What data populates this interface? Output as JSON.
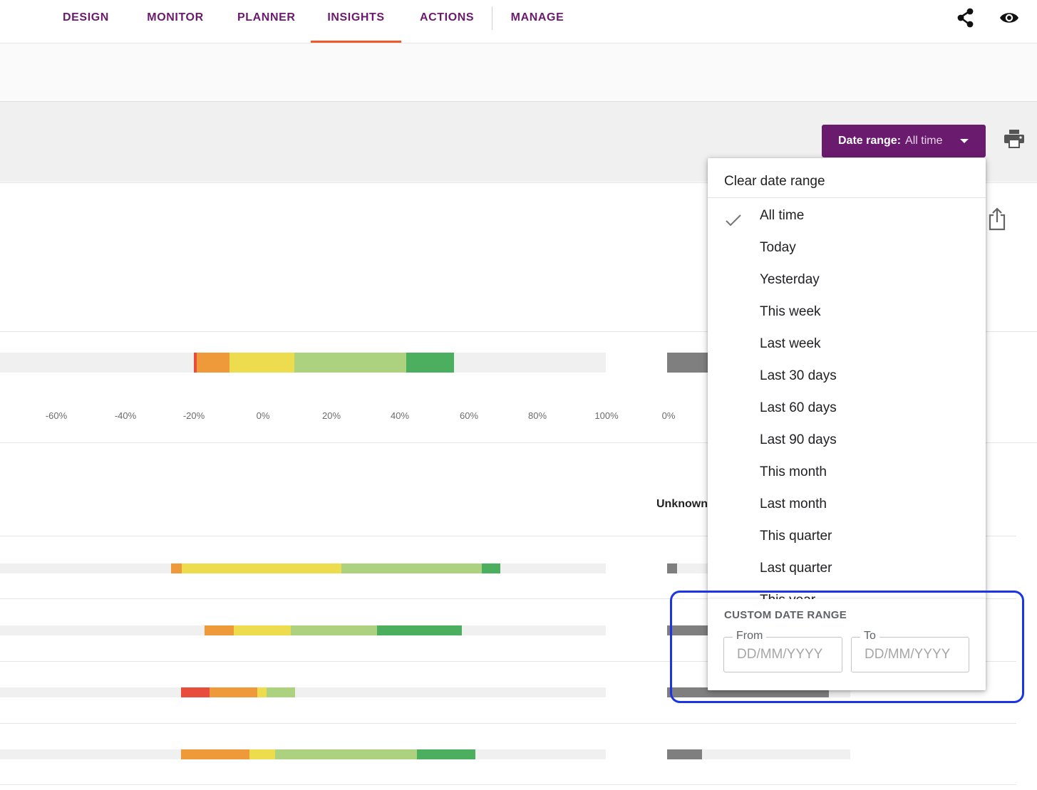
{
  "nav": {
    "tabs": [
      {
        "label": "DESIGN",
        "active": false
      },
      {
        "label": "MONITOR",
        "active": false
      },
      {
        "label": "PLANNER",
        "active": false
      },
      {
        "label": "INSIGHTS",
        "active": true
      },
      {
        "label": "ACTIONS",
        "active": false
      },
      {
        "label": "MANAGE",
        "active": false
      }
    ],
    "icons": [
      "share-icon",
      "eye-icon"
    ]
  },
  "toolbar": {
    "date_range_label": "Date range:",
    "date_range_value": "All time",
    "icons": [
      "print-icon",
      "export-icon"
    ]
  },
  "chart": {
    "axis_ticks": [
      "-60%",
      "-40%",
      "-20%",
      "0%",
      "20%",
      "40%",
      "60%",
      "80%",
      "100%"
    ],
    "secondary_axis_tick": "0%",
    "column_header": "Unknown"
  },
  "colors": {
    "brand": "#6a1b6e",
    "active_tab_underline": "#f05a28",
    "very_negative": "#e74c3c",
    "negative": "#ee9a3a",
    "neutral": "#ecdc4e",
    "positive": "#acd280",
    "very_positive": "#4caf60",
    "unknown": "#7f7f7f",
    "highlight": "#1a34e6"
  },
  "dropdown": {
    "clear_label": "Clear date range",
    "options": [
      {
        "label": "All time",
        "selected": true
      },
      {
        "label": "Today",
        "selected": false
      },
      {
        "label": "Yesterday",
        "selected": false
      },
      {
        "label": "This week",
        "selected": false
      },
      {
        "label": "Last week",
        "selected": false
      },
      {
        "label": "Last 30 days",
        "selected": false
      },
      {
        "label": "Last 60 days",
        "selected": false
      },
      {
        "label": "Last 90 days",
        "selected": false
      },
      {
        "label": "This month",
        "selected": false
      },
      {
        "label": "Last month",
        "selected": false
      },
      {
        "label": "This quarter",
        "selected": false
      },
      {
        "label": "Last quarter",
        "selected": false
      },
      {
        "label": "This year",
        "selected": false
      }
    ],
    "custom": {
      "title": "CUSTOM DATE RANGE",
      "from_label": "From",
      "from_placeholder": "DD/MM/YYYY",
      "to_label": "To",
      "to_placeholder": "DD/MM/YYYY"
    }
  }
}
